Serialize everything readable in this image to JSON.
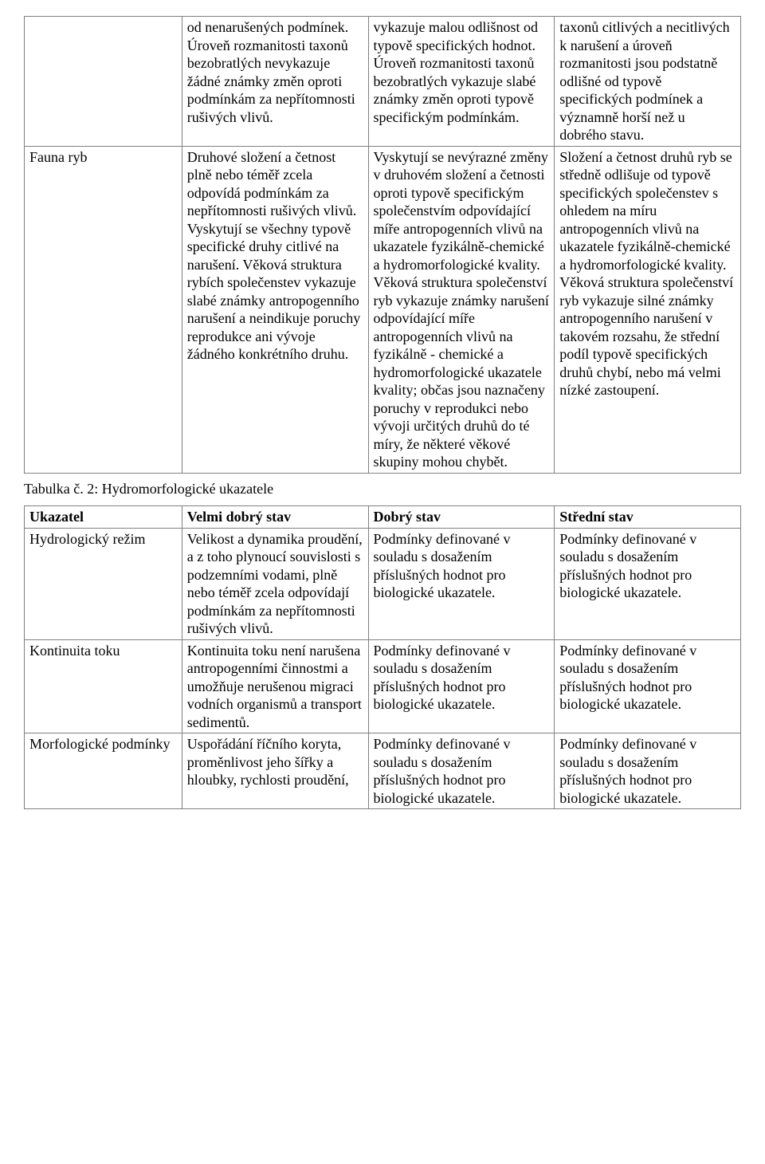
{
  "table1": {
    "rows": [
      {
        "c1": "",
        "c2": "od nenarušených podmínek. Úroveň rozmanitosti taxonů bezobratlých nevykazuje žádné známky změn oproti podmínkám za nepřítomnosti rušivých vlivů.",
        "c3": "vykazuje malou odlišnost od typově specifických hodnot. Úroveň rozmanitosti taxonů bezobratlých vykazuje slabé známky změn oproti typově specifickým podmínkám.",
        "c4": "taxonů citlivých a necitlivých k narušení a úroveň rozmanitosti jsou podstatně odlišné od typově specifických podmínek a významně horší než u dobrého stavu."
      },
      {
        "c1": "Fauna ryb",
        "c2": "Druhové složení a četnost plně nebo téměř zcela odpovídá podmínkám za nepřítomnosti rušivých vlivů. Vyskytují se všechny typově specifické druhy citlivé na narušení. Věková struktura rybích společenstev vykazuje slabé známky antropogenního narušení a neindikuje poruchy reprodukce ani vývoje žádného konkrétního druhu.",
        "c3": "Vyskytují se nevýrazné změny v druhovém složení a četnosti oproti typově specifickým společenstvím odpovídající míře antropogenních vlivů na ukazatele fyzikálně-chemické a hydromorfologické kvality. Věková struktura společenství ryb vykazuje známky narušení odpovídající míře antropogenních vlivů na fyzikálně - chemické a hydromorfologické ukazatele kvality; občas jsou naznačeny poruchy v reprodukci nebo vývoji určitých druhů do té míry, že některé věkové skupiny mohou chybět.",
        "c4": "Složení a četnost druhů ryb se středně odlišuje od typově specifických společenstev s ohledem na míru antropogenních vlivů na ukazatele fyzikálně-chemické a hydromorfologické kvality. Věková struktura společenství ryb vykazuje silné známky antropogenního narušení v takovém rozsahu, že střední podíl typově specifických druhů chybí, nebo má velmi nízké zastoupení."
      }
    ]
  },
  "caption2": "Tabulka č. 2: Hydromorfologické ukazatele",
  "table2": {
    "header": {
      "h1": "Ukazatel",
      "h2": "Velmi dobrý stav",
      "h3": "Dobrý stav",
      "h4": "Střední stav"
    },
    "rows": [
      {
        "c1": "Hydrologický režim",
        "c2": "Velikost a dynamika proudění, a z toho plynoucí souvislosti s podzemními vodami, plně nebo téměř zcela odpovídají podmínkám za nepřítomnosti rušivých vlivů.",
        "c3": "Podmínky definované v souladu s dosažením příslušných hodnot pro biologické ukazatele.",
        "c4": "Podmínky definované v souladu s dosažením příslušných hodnot pro biologické ukazatele."
      },
      {
        "c1": "Kontinuita toku",
        "c2": "Kontinuita toku není narušena antropogenními činnostmi a umožňuje nerušenou migraci vodních organismů a transport sedimentů.",
        "c3": "Podmínky definované v souladu s dosažením příslušných hodnot pro biologické ukazatele.",
        "c4": "Podmínky definované v souladu s dosažením příslušných hodnot pro biologické ukazatele."
      },
      {
        "c1": "Morfologické podmínky",
        "c2": "Uspořádání říčního koryta, proměnlivost jeho šířky a hloubky, rychlosti proudění,",
        "c3": "Podmínky definované v souladu s dosažením příslušných hodnot pro biologické ukazatele.",
        "c4": "Podmínky definované v souladu s dosažením příslušných hodnot pro biologické ukazatele."
      }
    ]
  }
}
